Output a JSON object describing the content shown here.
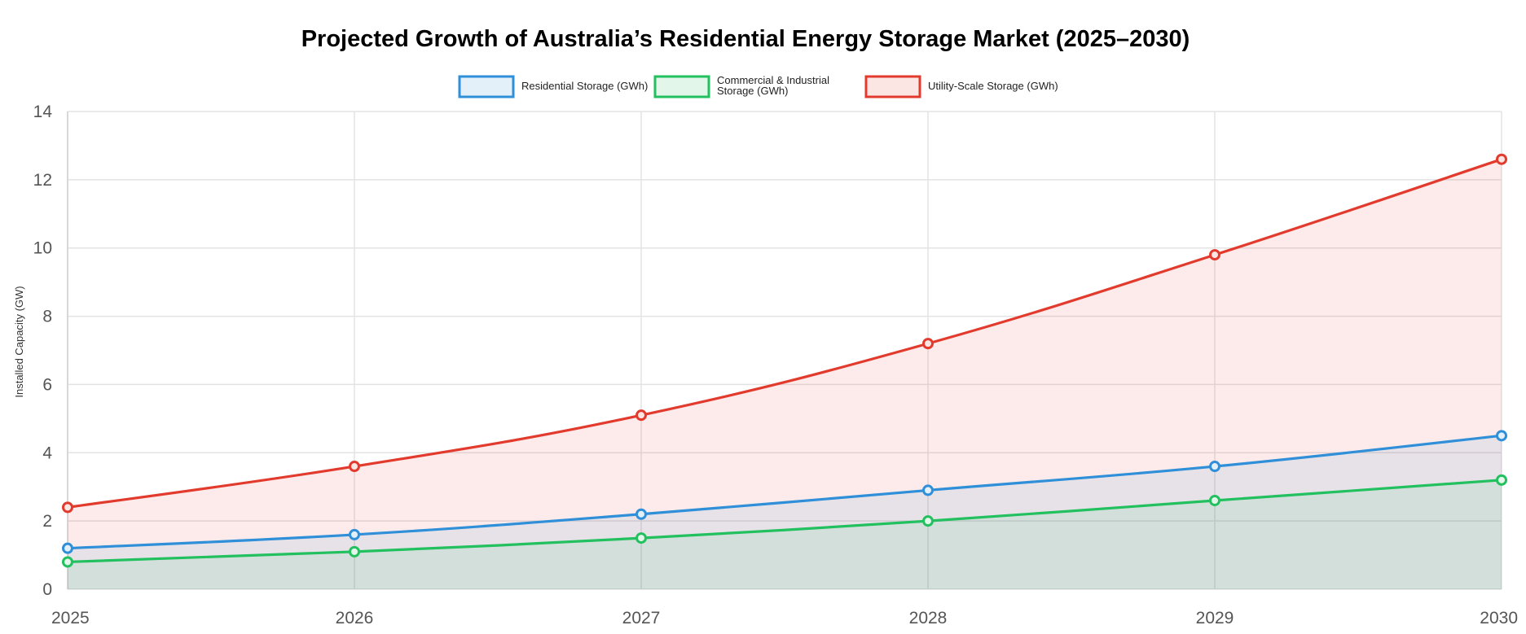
{
  "chart_data": {
    "type": "area",
    "title": "Projected Growth of Australia’s Residential Energy Storage Market (2025–2030)",
    "ylabel": "Installed Capacity (GW)",
    "xlabel": "",
    "categories": [
      "2025",
      "2026",
      "2027",
      "2028",
      "2029",
      "2030"
    ],
    "ylim": [
      0,
      14
    ],
    "yticks": [
      "0",
      "2",
      "4",
      "6",
      "8",
      "10",
      "12",
      "14"
    ],
    "grid": true,
    "legend_position": "top-center",
    "series": [
      {
        "name": "Residential Storage (GWh)",
        "legend_lines": [
          "Residential Storage (GWh)"
        ],
        "color": "#2f8fd8",
        "fill": "#e3f0fa",
        "values": [
          1.2,
          1.6,
          2.2,
          2.9,
          3.6,
          4.5
        ]
      },
      {
        "name": "Commercial & Industrial Storage (GWh)",
        "legend_lines": [
          "Commercial & Industrial",
          "Storage (GWh)"
        ],
        "color": "#22c05e",
        "fill": "#e2f6ea",
        "values": [
          0.8,
          1.1,
          1.5,
          2.0,
          2.6,
          3.2
        ]
      },
      {
        "name": "Utility-Scale Storage (GWh)",
        "legend_lines": [
          "Utility-Scale Storage (GWh)"
        ],
        "color": "#e23b2e",
        "fill": "#fbe6e4",
        "values": [
          2.4,
          3.6,
          5.1,
          7.2,
          9.8,
          12.6
        ]
      }
    ]
  }
}
